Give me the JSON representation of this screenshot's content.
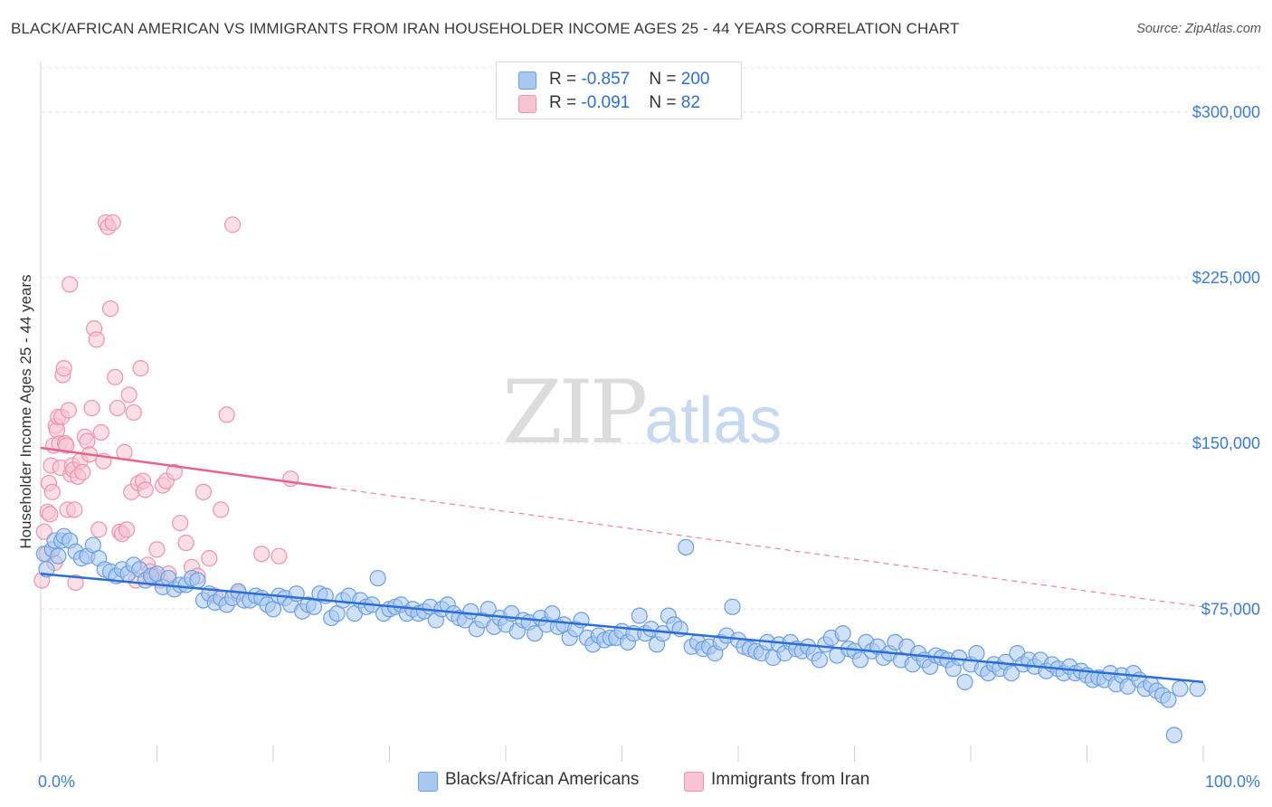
{
  "title": "BLACK/AFRICAN AMERICAN VS IMMIGRANTS FROM IRAN HOUSEHOLDER INCOME AGES 25 - 44 YEARS CORRELATION CHART",
  "source": "Source: ZipAtlas.com",
  "watermark": {
    "zip": "ZIP",
    "atlas": "atlas"
  },
  "legend": {
    "rows": [
      {
        "r_label": "R = ",
        "r_value": "-0.857",
        "n_label": "N = ",
        "n_value": "200"
      },
      {
        "r_label": "R = ",
        "r_value": "-0.091",
        "n_label": "N = ",
        "n_value": "82"
      }
    ]
  },
  "colors": {
    "blue_fill": "#a9c8f0",
    "blue_stroke": "#6a9fe0",
    "blue_line": "#2a6fd6",
    "pink_fill": "#f8c4d3",
    "pink_stroke": "#ee93ae",
    "pink_line": "#e8628d",
    "grid": "#e3e3e3",
    "tick_text": "#3c7bd4"
  },
  "chart_data": {
    "type": "scatter",
    "title": "BLACK/AFRICAN AMERICAN VS IMMIGRANTS FROM IRAN HOUSEHOLDER INCOME AGES 25 - 44 YEARS CORRELATION CHART",
    "xlabel": "",
    "ylabel": "Householder Income Ages 25 - 44 years",
    "xlim": [
      0,
      100
    ],
    "ylim": [
      10000,
      320000
    ],
    "x_ticks": [
      "0.0%",
      "100.0%"
    ],
    "y_ticks": [
      {
        "value": 75000,
        "label": "$75,000"
      },
      {
        "value": 150000,
        "label": "$150,000"
      },
      {
        "value": 225000,
        "label": "$225,000"
      },
      {
        "value": 300000,
        "label": "$300,000"
      }
    ],
    "grid": true,
    "legend_position": "top-center",
    "series": [
      {
        "name": "Blacks/African Americans",
        "color": "#6a9fe0",
        "r": -0.857,
        "n": 200,
        "trend": {
          "x": [
            0,
            100
          ],
          "y": [
            91000,
            42000
          ],
          "dashed_from": null
        },
        "points": [
          [
            0.3,
            100000
          ],
          [
            0.5,
            93000
          ],
          [
            1.0,
            102000
          ],
          [
            1.2,
            106000
          ],
          [
            1.5,
            99000
          ],
          [
            1.8,
            106000
          ],
          [
            2.0,
            108000
          ],
          [
            2.5,
            106000
          ],
          [
            3.0,
            101000
          ],
          [
            3.5,
            98000
          ],
          [
            4.0,
            99000
          ],
          [
            4.5,
            104000
          ],
          [
            5.0,
            98000
          ],
          [
            5.5,
            93000
          ],
          [
            6.0,
            92000
          ],
          [
            6.5,
            90000
          ],
          [
            7.0,
            93000
          ],
          [
            7.5,
            91000
          ],
          [
            8.0,
            95000
          ],
          [
            8.5,
            93000
          ],
          [
            9.0,
            88000
          ],
          [
            9.5,
            90000
          ],
          [
            10.0,
            91000
          ],
          [
            10.5,
            85000
          ],
          [
            11.0,
            89000
          ],
          [
            11.5,
            84000
          ],
          [
            12.0,
            86000
          ],
          [
            12.5,
            86000
          ],
          [
            13.0,
            89000
          ],
          [
            13.5,
            88000
          ],
          [
            14.0,
            79000
          ],
          [
            14.5,
            82000
          ],
          [
            15.0,
            78000
          ],
          [
            15.5,
            80000
          ],
          [
            16.0,
            77000
          ],
          [
            16.5,
            80000
          ],
          [
            17.0,
            83000
          ],
          [
            17.5,
            79000
          ],
          [
            18.0,
            79000
          ],
          [
            18.5,
            81000
          ],
          [
            19.0,
            80000
          ],
          [
            19.5,
            77000
          ],
          [
            20.0,
            75000
          ],
          [
            20.5,
            81000
          ],
          [
            21.0,
            80000
          ],
          [
            21.5,
            77000
          ],
          [
            22.0,
            82000
          ],
          [
            22.5,
            74000
          ],
          [
            23.0,
            77000
          ],
          [
            23.5,
            76000
          ],
          [
            24.0,
            82000
          ],
          [
            24.5,
            81000
          ],
          [
            25.0,
            71000
          ],
          [
            25.5,
            73000
          ],
          [
            26.0,
            79000
          ],
          [
            26.5,
            81000
          ],
          [
            27.0,
            73000
          ],
          [
            27.5,
            79000
          ],
          [
            28.0,
            76000
          ],
          [
            28.5,
            77000
          ],
          [
            29.0,
            89000
          ],
          [
            29.5,
            73000
          ],
          [
            30.0,
            75000
          ],
          [
            30.5,
            76000
          ],
          [
            31.0,
            77000
          ],
          [
            31.5,
            73000
          ],
          [
            32.0,
            75000
          ],
          [
            32.5,
            73000
          ],
          [
            33.0,
            74000
          ],
          [
            33.5,
            76000
          ],
          [
            34.0,
            70000
          ],
          [
            34.5,
            75000
          ],
          [
            35.0,
            77000
          ],
          [
            35.5,
            73000
          ],
          [
            36.0,
            71000
          ],
          [
            36.5,
            70000
          ],
          [
            37.0,
            74000
          ],
          [
            37.5,
            66000
          ],
          [
            38.0,
            70000
          ],
          [
            38.5,
            75000
          ],
          [
            39.0,
            67000
          ],
          [
            39.5,
            71000
          ],
          [
            40.0,
            68000
          ],
          [
            40.5,
            73000
          ],
          [
            41.0,
            65000
          ],
          [
            41.5,
            70000
          ],
          [
            42.0,
            69000
          ],
          [
            42.5,
            64000
          ],
          [
            43.0,
            71000
          ],
          [
            43.5,
            68000
          ],
          [
            44.0,
            73000
          ],
          [
            44.5,
            67000
          ],
          [
            45.0,
            68000
          ],
          [
            45.5,
            62000
          ],
          [
            46.0,
            66000
          ],
          [
            46.5,
            70000
          ],
          [
            47.0,
            62000
          ],
          [
            47.5,
            59000
          ],
          [
            48.0,
            63000
          ],
          [
            48.5,
            61000
          ],
          [
            49.0,
            62000
          ],
          [
            49.5,
            62000
          ],
          [
            50.0,
            65000
          ],
          [
            50.5,
            60000
          ],
          [
            51.0,
            64000
          ],
          [
            51.5,
            72000
          ],
          [
            52.0,
            64000
          ],
          [
            52.5,
            66000
          ],
          [
            53.0,
            59000
          ],
          [
            53.5,
            64000
          ],
          [
            54.0,
            72000
          ],
          [
            54.5,
            68000
          ],
          [
            55.0,
            66000
          ],
          [
            55.5,
            103000
          ],
          [
            56.0,
            58000
          ],
          [
            56.5,
            60000
          ],
          [
            57.0,
            57000
          ],
          [
            57.5,
            58000
          ],
          [
            58.0,
            55000
          ],
          [
            58.5,
            60000
          ],
          [
            59.0,
            63000
          ],
          [
            59.5,
            76000
          ],
          [
            60.0,
            61000
          ],
          [
            60.5,
            58000
          ],
          [
            61.0,
            57000
          ],
          [
            61.5,
            56000
          ],
          [
            62.0,
            55000
          ],
          [
            62.5,
            60000
          ],
          [
            63.0,
            53000
          ],
          [
            63.5,
            59000
          ],
          [
            64.0,
            55000
          ],
          [
            64.5,
            60000
          ],
          [
            65.0,
            57000
          ],
          [
            65.5,
            56000
          ],
          [
            66.0,
            58000
          ],
          [
            66.5,
            55000
          ],
          [
            67.0,
            52000
          ],
          [
            67.5,
            59000
          ],
          [
            68.0,
            62000
          ],
          [
            68.5,
            54000
          ],
          [
            69.0,
            64000
          ],
          [
            69.5,
            57000
          ],
          [
            70.0,
            56000
          ],
          [
            70.5,
            52000
          ],
          [
            71.0,
            60000
          ],
          [
            71.5,
            56000
          ],
          [
            72.0,
            58000
          ],
          [
            72.5,
            53000
          ],
          [
            73.0,
            55000
          ],
          [
            73.5,
            60000
          ],
          [
            74.0,
            52000
          ],
          [
            74.5,
            58000
          ],
          [
            75.0,
            50000
          ],
          [
            75.5,
            55000
          ],
          [
            76.0,
            52000
          ],
          [
            76.5,
            49000
          ],
          [
            77.0,
            54000
          ],
          [
            77.5,
            53000
          ],
          [
            78.0,
            52000
          ],
          [
            78.5,
            48000
          ],
          [
            79.0,
            53000
          ],
          [
            79.5,
            42000
          ],
          [
            80.0,
            50000
          ],
          [
            80.5,
            55000
          ],
          [
            81.0,
            48000
          ],
          [
            81.5,
            46000
          ],
          [
            82.0,
            50000
          ],
          [
            82.5,
            48000
          ],
          [
            83.0,
            51000
          ],
          [
            83.5,
            46000
          ],
          [
            84.0,
            55000
          ],
          [
            84.5,
            50000
          ],
          [
            85.0,
            52000
          ],
          [
            85.5,
            49000
          ],
          [
            86.0,
            52000
          ],
          [
            86.5,
            47000
          ],
          [
            87.0,
            50000
          ],
          [
            87.5,
            48000
          ],
          [
            88.0,
            46000
          ],
          [
            88.5,
            49000
          ],
          [
            89.0,
            46000
          ],
          [
            89.5,
            47000
          ],
          [
            90.0,
            45000
          ],
          [
            90.5,
            43000
          ],
          [
            91.0,
            44000
          ],
          [
            91.5,
            43000
          ],
          [
            92.0,
            46000
          ],
          [
            92.5,
            41000
          ],
          [
            93.0,
            45000
          ],
          [
            93.5,
            40000
          ],
          [
            94.0,
            46000
          ],
          [
            94.5,
            43000
          ],
          [
            95.0,
            39000
          ],
          [
            95.5,
            41000
          ],
          [
            96.0,
            38000
          ],
          [
            96.5,
            36000
          ],
          [
            97.0,
            34000
          ],
          [
            97.5,
            18000
          ],
          [
            98.0,
            39000
          ],
          [
            99.5,
            39000
          ]
        ]
      },
      {
        "name": "Immigrants from Iran",
        "color": "#ee93ae",
        "r": -0.091,
        "n": 82,
        "trend": {
          "x": [
            0,
            100
          ],
          "y": [
            148000,
            76000
          ],
          "solid_until_x": 25
        },
        "points": [
          [
            0.1,
            88000
          ],
          [
            0.3,
            110000
          ],
          [
            0.5,
            100000
          ],
          [
            0.6,
            119000
          ],
          [
            0.7,
            132000
          ],
          [
            0.8,
            118000
          ],
          [
            0.9,
            140000
          ],
          [
            1.0,
            128000
          ],
          [
            1.1,
            149000
          ],
          [
            1.2,
            96000
          ],
          [
            1.3,
            158000
          ],
          [
            1.4,
            156000
          ],
          [
            1.5,
            162000
          ],
          [
            1.6,
            150000
          ],
          [
            1.7,
            139000
          ],
          [
            1.8,
            162000
          ],
          [
            1.9,
            181000
          ],
          [
            2.0,
            184000
          ],
          [
            2.1,
            150000
          ],
          [
            2.2,
            149000
          ],
          [
            2.3,
            120000
          ],
          [
            2.4,
            165000
          ],
          [
            2.5,
            222000
          ],
          [
            2.6,
            136000
          ],
          [
            2.7,
            140000
          ],
          [
            2.8,
            138000
          ],
          [
            2.9,
            120000
          ],
          [
            3.0,
            87000
          ],
          [
            3.2,
            135000
          ],
          [
            3.4,
            142000
          ],
          [
            3.6,
            137000
          ],
          [
            3.8,
            153000
          ],
          [
            4.0,
            151000
          ],
          [
            4.2,
            145000
          ],
          [
            4.4,
            166000
          ],
          [
            4.6,
            202000
          ],
          [
            4.8,
            197000
          ],
          [
            5.0,
            111000
          ],
          [
            5.2,
            155000
          ],
          [
            5.4,
            142000
          ],
          [
            5.6,
            250000
          ],
          [
            5.8,
            248000
          ],
          [
            6.0,
            211000
          ],
          [
            6.2,
            250000
          ],
          [
            6.4,
            180000
          ],
          [
            6.6,
            166000
          ],
          [
            6.8,
            110000
          ],
          [
            7.0,
            109000
          ],
          [
            7.2,
            146000
          ],
          [
            7.4,
            111000
          ],
          [
            7.6,
            172000
          ],
          [
            7.8,
            128000
          ],
          [
            8.0,
            164000
          ],
          [
            8.2,
            88000
          ],
          [
            8.4,
            132000
          ],
          [
            8.6,
            184000
          ],
          [
            8.8,
            133000
          ],
          [
            9.0,
            129000
          ],
          [
            9.2,
            95000
          ],
          [
            9.4,
            92000
          ],
          [
            9.6,
            89000
          ],
          [
            9.8,
            90000
          ],
          [
            10.0,
            102000
          ],
          [
            10.3,
            88000
          ],
          [
            10.5,
            131000
          ],
          [
            10.8,
            133000
          ],
          [
            11.0,
            91000
          ],
          [
            11.5,
            137000
          ],
          [
            12.0,
            114000
          ],
          [
            12.5,
            105000
          ],
          [
            13.0,
            94000
          ],
          [
            13.5,
            90000
          ],
          [
            14.0,
            128000
          ],
          [
            14.5,
            98000
          ],
          [
            15.0,
            81000
          ],
          [
            15.5,
            120000
          ],
          [
            16.0,
            163000
          ],
          [
            16.5,
            249000
          ],
          [
            17.0,
            82000
          ],
          [
            19.0,
            100000
          ],
          [
            20.5,
            99000
          ],
          [
            21.5,
            134000
          ]
        ]
      }
    ]
  },
  "bottom_legend": [
    {
      "label": "Blacks/African Americans"
    },
    {
      "label": "Immigrants from Iran"
    }
  ]
}
